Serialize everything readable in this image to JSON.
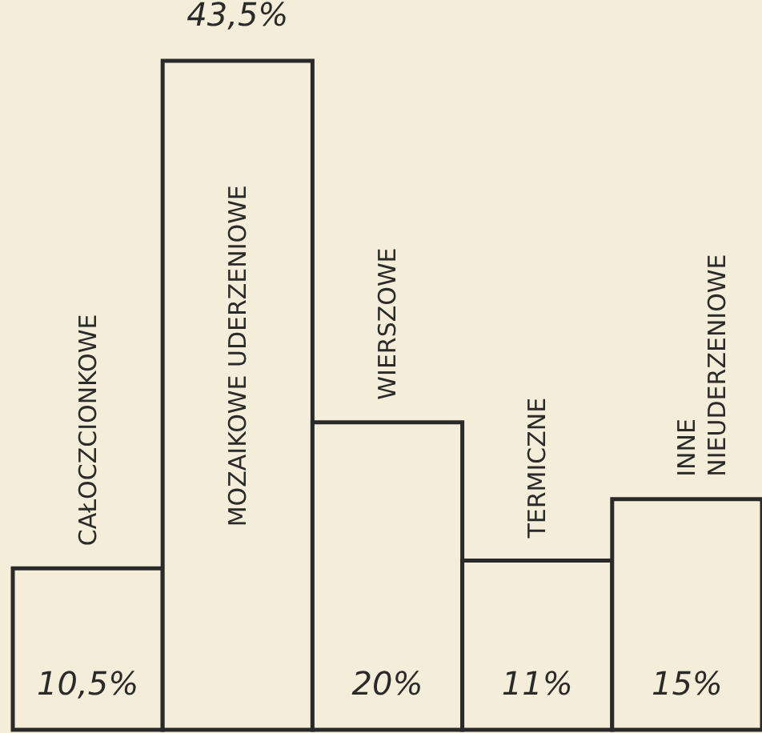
{
  "chart_data": {
    "type": "bar",
    "categories": [
      "CAŁOCZCIONKOWE",
      "MOZAIKOWE UDERZENIOWE",
      "WIERSZOWE",
      "TERMICZNE",
      "INNE\nNIEUDERZENIOWE"
    ],
    "values": [
      10.5,
      43.5,
      20,
      11,
      15
    ],
    "value_labels": [
      "10,5%",
      "43,5%",
      "20%",
      "11%",
      "15%"
    ],
    "color": "#f4edd9"
  }
}
